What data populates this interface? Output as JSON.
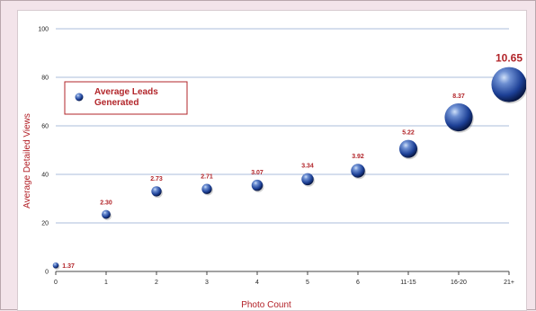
{
  "chart_data": {
    "type": "scatter",
    "title": "",
    "xlabel": "Photo Count",
    "ylabel": "Average Detailed Views",
    "categories": [
      "0",
      "1",
      "2",
      "3",
      "4",
      "5",
      "6",
      "11-15",
      "16-20",
      "21+"
    ],
    "ylim": [
      0,
      100
    ],
    "yticks": [
      0,
      20,
      40,
      60,
      80,
      100
    ],
    "grid": true,
    "series": [
      {
        "name": "Average Leads Generated",
        "y": [
          2.5,
          23.5,
          33,
          34,
          35.5,
          38,
          41.5,
          50.5,
          63.5,
          77
        ],
        "labels": [
          "1.37",
          "2.30",
          "2.73",
          "2.71",
          "3.07",
          "3.34",
          "3.92",
          "5.22",
          "8.37",
          "10.65"
        ],
        "bubble_size": [
          1.37,
          2.3,
          2.73,
          2.71,
          3.07,
          3.34,
          3.92,
          5.22,
          8.37,
          10.65
        ]
      }
    ],
    "legend": "top-left",
    "colors": {
      "bubble": "#1c3f95",
      "bubble_highlight": "#c9dcf7",
      "label": "#b2252a",
      "grid": "#8fa7cf",
      "axis_label": "#b21f26"
    }
  }
}
